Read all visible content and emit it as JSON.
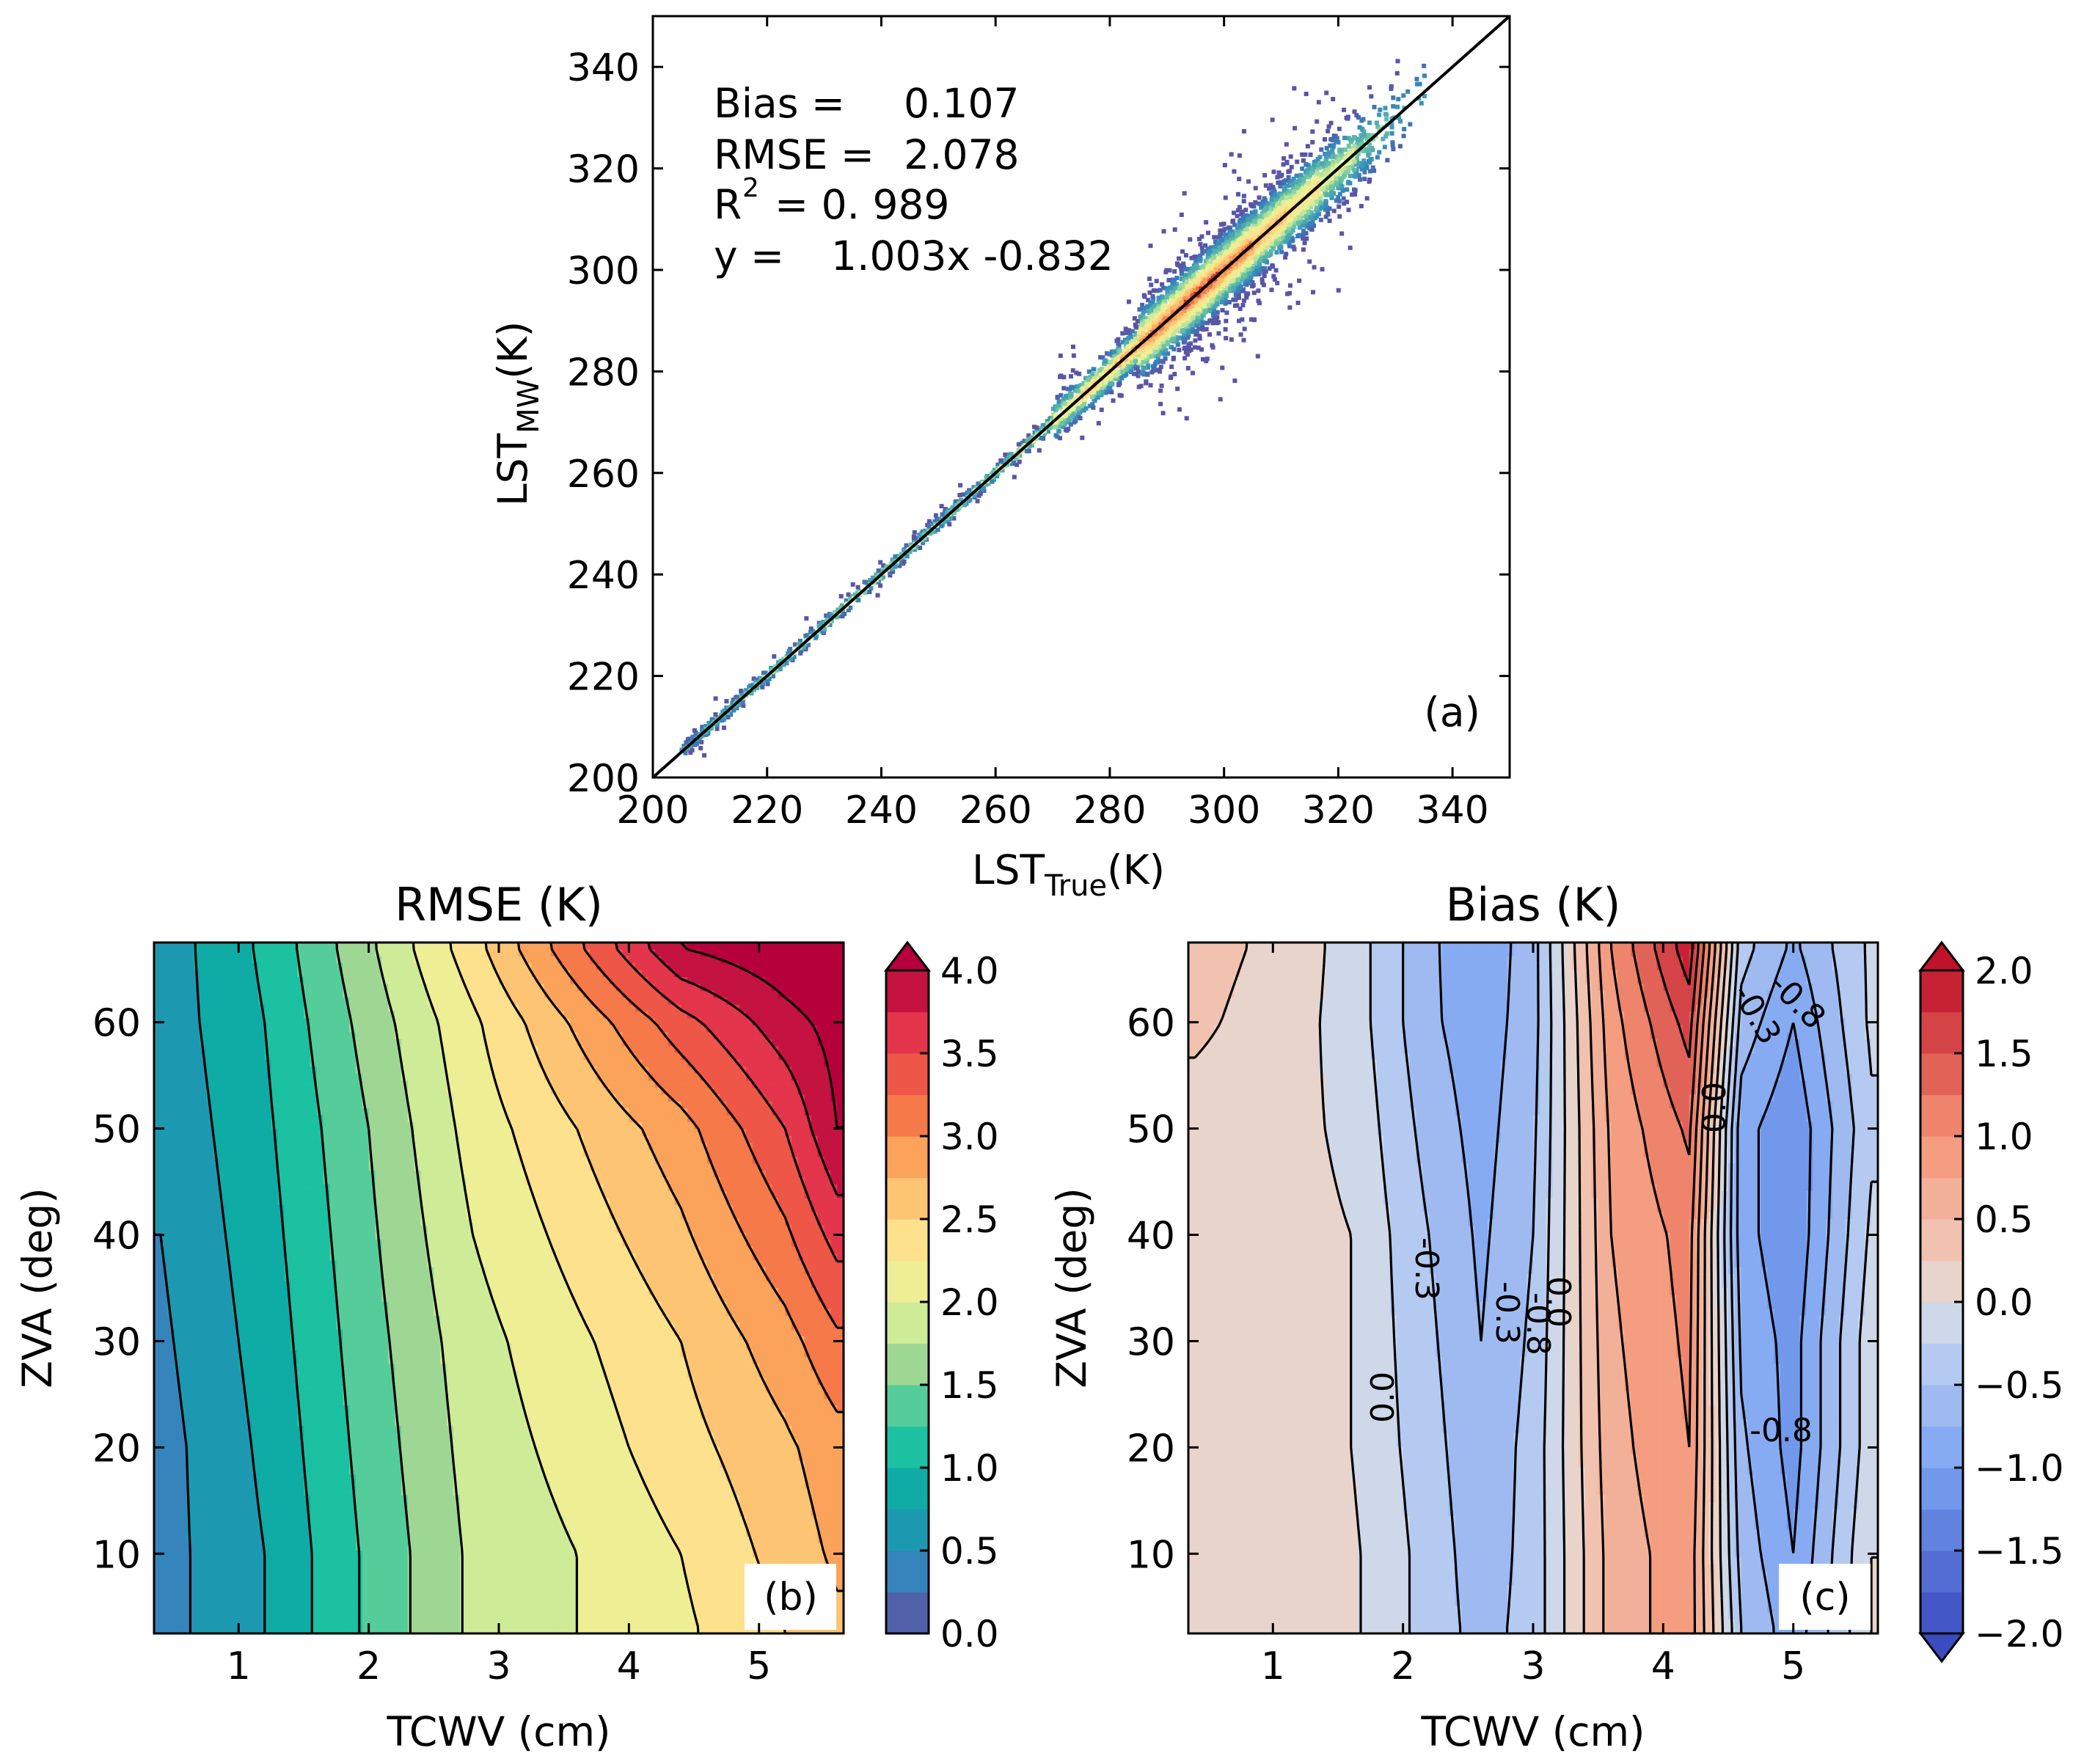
{
  "chart_data": [
    {
      "id": "a",
      "type": "scatter",
      "panel_label": "(a)",
      "xlabel": {
        "main": "LST",
        "sub": "True",
        "unit": "(K)"
      },
      "ylabel": {
        "main": "LST",
        "sub": "MW",
        "unit": "(K)"
      },
      "xlim": [
        200,
        350
      ],
      "ylim": [
        200,
        350
      ],
      "xticks": [
        200,
        220,
        240,
        260,
        280,
        300,
        320,
        340
      ],
      "yticks": [
        200,
        220,
        240,
        260,
        280,
        300,
        320,
        340
      ],
      "stats": {
        "bias_label": "Bias =",
        "bias": "0.107",
        "rmse_label": "RMSE =",
        "rmse": "2.078",
        "r2_label": "R",
        "r2_sup": "2",
        "r2": "= 0. 989",
        "fit_label": "y =",
        "fit": "1.003x -0.832"
      },
      "reference_line": {
        "from": [
          200,
          200
        ],
        "to": [
          350,
          350
        ]
      },
      "density_points": [
        {
          "x": 206,
          "y": 206,
          "density": 0.35
        },
        {
          "x": 212,
          "y": 212,
          "density": 0.45
        },
        {
          "x": 218,
          "y": 218,
          "density": 0.5
        },
        {
          "x": 224,
          "y": 224,
          "density": 0.55
        },
        {
          "x": 230,
          "y": 230,
          "density": 0.6
        },
        {
          "x": 236,
          "y": 236,
          "density": 0.6
        },
        {
          "x": 242,
          "y": 242,
          "density": 0.6
        },
        {
          "x": 248,
          "y": 248,
          "density": 0.55
        },
        {
          "x": 254,
          "y": 254,
          "density": 0.55
        },
        {
          "x": 260,
          "y": 260,
          "density": 0.6
        },
        {
          "x": 266,
          "y": 266,
          "density": 0.65
        },
        {
          "x": 272,
          "y": 272,
          "density": 0.7
        },
        {
          "x": 278,
          "y": 278,
          "density": 0.8
        },
        {
          "x": 284,
          "y": 284,
          "density": 0.9
        },
        {
          "x": 290,
          "y": 290,
          "density": 0.95
        },
        {
          "x": 296,
          "y": 296,
          "density": 1.0
        },
        {
          "x": 302,
          "y": 302,
          "density": 0.95
        },
        {
          "x": 308,
          "y": 308,
          "density": 0.85
        },
        {
          "x": 314,
          "y": 314,
          "density": 0.75
        },
        {
          "x": 320,
          "y": 320,
          "density": 0.6
        },
        {
          "x": 326,
          "y": 326,
          "density": 0.45
        },
        {
          "x": 332,
          "y": 332,
          "density": 0.3
        }
      ]
    },
    {
      "id": "b",
      "type": "contour",
      "title": "RMSE (K)",
      "panel_label": "(b)",
      "xlabel": "TCWV (cm)",
      "ylabel": "ZVA (deg)",
      "xlim": [
        0.35,
        5.65
      ],
      "ylim": [
        2.5,
        67.5
      ],
      "xticks": [
        1,
        2,
        3,
        4,
        5
      ],
      "yticks": [
        10,
        20,
        30,
        40,
        50,
        60
      ],
      "x": [
        0.4,
        1.2,
        2.0,
        2.8,
        3.6,
        4.4,
        5.2,
        5.6
      ],
      "y": [
        3,
        10,
        20,
        30,
        40,
        50,
        60,
        67
      ],
      "z": [
        [
          0.4,
          0.75,
          1.3,
          1.8,
          2.0,
          2.2,
          2.5,
          2.7
        ],
        [
          0.4,
          0.75,
          1.3,
          1.8,
          2.0,
          2.25,
          2.6,
          2.8
        ],
        [
          0.4,
          0.8,
          1.35,
          1.85,
          2.1,
          2.4,
          2.7,
          2.9
        ],
        [
          0.45,
          0.85,
          1.4,
          1.9,
          2.2,
          2.5,
          2.9,
          3.2
        ],
        [
          0.5,
          0.9,
          1.45,
          2.0,
          2.35,
          2.7,
          3.2,
          3.6
        ],
        [
          0.55,
          0.95,
          1.5,
          2.1,
          2.5,
          2.9,
          3.5,
          4.0
        ],
        [
          0.6,
          1.0,
          1.6,
          2.2,
          2.8,
          3.4,
          3.9,
          4.1
        ],
        [
          0.6,
          1.05,
          1.7,
          2.4,
          3.2,
          4.0,
          4.2,
          4.3
        ]
      ],
      "levels": [
        0.0,
        0.25,
        0.5,
        0.75,
        1.0,
        1.25,
        1.5,
        1.75,
        2.0,
        2.25,
        2.5,
        2.75,
        3.0,
        3.25,
        3.5,
        3.75,
        4.0
      ],
      "colorbar": {
        "ticks": [
          "0.0",
          "0.5",
          "1.0",
          "1.5",
          "2.0",
          "2.5",
          "3.0",
          "3.5",
          "4.0"
        ],
        "range": [
          0,
          4
        ],
        "extend": "max"
      }
    },
    {
      "id": "c",
      "type": "contour",
      "title": "Bias (K)",
      "panel_label": "(c)",
      "xlabel": "TCWV (cm)",
      "ylabel": "ZVA (deg)",
      "xlim": [
        0.35,
        5.65
      ],
      "ylim": [
        2.5,
        67.5
      ],
      "xticks": [
        1,
        2,
        3,
        4,
        5
      ],
      "yticks": [
        10,
        20,
        30,
        40,
        50,
        60
      ],
      "x": [
        0.4,
        1.0,
        1.6,
        2.2,
        2.6,
        3.0,
        3.6,
        4.2,
        4.6,
        5.0,
        5.6
      ],
      "y": [
        3,
        10,
        20,
        30,
        40,
        50,
        60,
        67
      ],
      "z": [
        [
          0.1,
          0.1,
          0.05,
          -0.35,
          -0.6,
          -0.4,
          0.6,
          0.9,
          -0.5,
          -0.9,
          0.0
        ],
        [
          0.1,
          0.1,
          0.05,
          -0.35,
          -0.65,
          -0.4,
          0.6,
          0.9,
          -0.6,
          -1.0,
          0.0
        ],
        [
          0.1,
          0.1,
          0.0,
          -0.4,
          -0.7,
          -0.4,
          0.65,
          1.0,
          -0.7,
          -1.1,
          -0.1
        ],
        [
          0.1,
          0.1,
          0.0,
          -0.45,
          -0.75,
          -0.45,
          0.7,
          1.05,
          -0.8,
          -1.1,
          -0.1
        ],
        [
          0.1,
          0.1,
          0.0,
          -0.5,
          -0.8,
          -0.5,
          0.75,
          1.1,
          -0.9,
          -1.2,
          -0.2
        ],
        [
          0.15,
          0.1,
          -0.05,
          -0.6,
          -0.85,
          -0.55,
          0.8,
          1.3,
          -0.9,
          -1.2,
          -0.3
        ],
        [
          0.3,
          0.15,
          -0.1,
          -0.7,
          -0.9,
          -0.6,
          0.9,
          1.6,
          -0.6,
          -1.0,
          -0.2
        ],
        [
          0.35,
          0.2,
          -0.1,
          -0.7,
          -0.95,
          -0.6,
          1.0,
          1.9,
          -0.4,
          -0.8,
          -0.2
        ]
      ],
      "levels": [
        -2.0,
        -1.75,
        -1.5,
        -1.25,
        -1.0,
        -0.75,
        -0.5,
        -0.25,
        0.0,
        0.25,
        0.5,
        0.75,
        1.0,
        1.25,
        1.5,
        1.75,
        2.0
      ],
      "contour_labels": [
        "0.0",
        "-0.3",
        "-0.3",
        "-0.8",
        "0.0",
        "0.0",
        "-0.3",
        "-0.8",
        "-0.8"
      ],
      "colorbar": {
        "ticks": [
          "2.0",
          "1.5",
          "1.0",
          "0.5",
          "0.0",
          "−0.5",
          "−1.0",
          "−1.5",
          "−2.0"
        ],
        "range": [
          -2,
          2
        ],
        "extend": "both"
      }
    }
  ]
}
